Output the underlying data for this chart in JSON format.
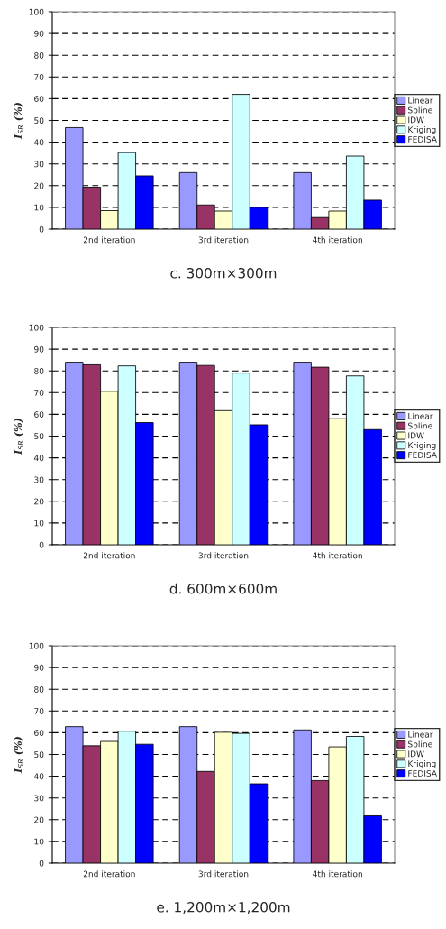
{
  "chart_data": [
    {
      "type": "bar",
      "title": "c. 300m×300m",
      "ylabel": "I$_{SR}$ (%)",
      "categories": [
        "2nd iteration",
        "3rd iteration",
        "4th iteration"
      ],
      "ylim": [
        0,
        100
      ],
      "yticks": [
        0,
        10,
        20,
        30,
        40,
        50,
        60,
        70,
        80,
        90,
        100
      ],
      "grid": "y",
      "legend": "right",
      "series": [
        {
          "name": "Linear",
          "color": "#9999ff",
          "values": [
            46.7,
            26,
            26
          ]
        },
        {
          "name": "Spline",
          "color": "#993366",
          "values": [
            19.3,
            11.1,
            5.3
          ]
        },
        {
          "name": "IDW",
          "color": "#ffffcc",
          "values": [
            8.5,
            8.3,
            8.3
          ]
        },
        {
          "name": "Kriging",
          "color": "#ccffff",
          "values": [
            35.2,
            62,
            33.6
          ]
        },
        {
          "name": "FEDISA",
          "color": "#0000ff",
          "values": [
            24.5,
            10,
            13.3
          ]
        }
      ]
    },
    {
      "type": "bar",
      "title": "d. 600m×600m",
      "ylabel": "I$_{SR}$ (%)",
      "categories": [
        "2nd iteration",
        "3rd iteration",
        "4th iteration"
      ],
      "ylim": [
        0,
        100
      ],
      "yticks": [
        0,
        10,
        20,
        30,
        40,
        50,
        60,
        70,
        80,
        90,
        100
      ],
      "grid": "y",
      "legend": "right",
      "series": [
        {
          "name": "Linear",
          "color": "#9999ff",
          "values": [
            84,
            84,
            84
          ]
        },
        {
          "name": "Spline",
          "color": "#993366",
          "values": [
            82.8,
            82.5,
            81.7
          ]
        },
        {
          "name": "IDW",
          "color": "#ffffcc",
          "values": [
            70.6,
            61.7,
            58
          ]
        },
        {
          "name": "Kriging",
          "color": "#ccffff",
          "values": [
            82.3,
            79,
            77.7
          ]
        },
        {
          "name": "FEDISA",
          "color": "#0000ff",
          "values": [
            56.2,
            55.2,
            53
          ]
        }
      ]
    },
    {
      "type": "bar",
      "title": "e. 1,200m×1,200m",
      "ylabel": "I$_{SR}$ (%)",
      "categories": [
        "2nd iteration",
        "3rd iteration",
        "4th iteration"
      ],
      "ylim": [
        0,
        100
      ],
      "yticks": [
        0,
        10,
        20,
        30,
        40,
        50,
        60,
        70,
        80,
        90,
        100
      ],
      "grid": "y",
      "legend": "right",
      "series": [
        {
          "name": "Linear",
          "color": "#9999ff",
          "values": [
            62.8,
            62.8,
            61.3
          ]
        },
        {
          "name": "Spline",
          "color": "#993366",
          "values": [
            54,
            42.2,
            38
          ]
        },
        {
          "name": "IDW",
          "color": "#ffffcc",
          "values": [
            56,
            60.2,
            53.5
          ]
        },
        {
          "name": "Kriging",
          "color": "#ccffff",
          "values": [
            60.7,
            59.7,
            58.3
          ]
        },
        {
          "name": "FEDISA",
          "color": "#0000ff",
          "values": [
            54.7,
            36.5,
            21.8
          ]
        }
      ]
    }
  ]
}
